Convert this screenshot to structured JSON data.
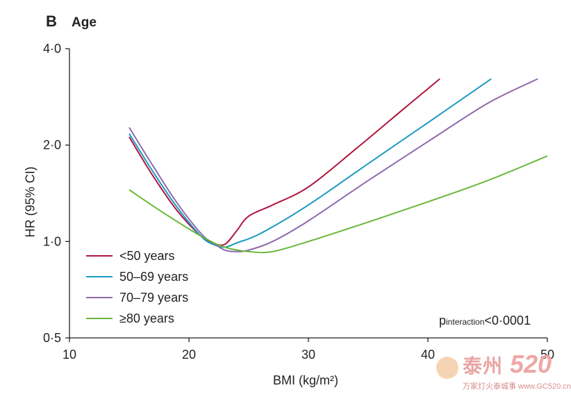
{
  "panel": {
    "letter": "B",
    "title": "Age"
  },
  "annotation": {
    "prefix": "p",
    "sub": "interaction",
    "suffix": "<0·0001"
  },
  "chart_data": {
    "type": "line",
    "title": "Age",
    "xlabel": "BMI (kg/m²)",
    "ylabel": "HR (95% CI)",
    "x_ticks": [
      10,
      20,
      30,
      40,
      50
    ],
    "x_tick_labels": [
      "10",
      "20",
      "30",
      "40",
      "50"
    ],
    "y_ticks": [
      0.5,
      1.0,
      2.0,
      4.0
    ],
    "y_tick_labels": [
      "0·5",
      "1·0",
      "2·0",
      "4·0"
    ],
    "xlim": [
      10,
      50
    ],
    "ylim": [
      0.5,
      4.0
    ],
    "y_scale": "log",
    "legend_position": "bottom-left",
    "series": [
      {
        "name": "<50 years",
        "color": "#b0143c",
        "x": [
          15,
          17,
          19,
          21,
          22,
          23,
          24,
          25,
          27,
          30,
          34,
          38,
          41
        ],
        "y": [
          2.12,
          1.6,
          1.25,
          1.04,
          0.99,
          0.98,
          1.08,
          1.2,
          1.3,
          1.48,
          1.95,
          2.6,
          3.22
        ]
      },
      {
        "name": "50–69 years",
        "color": "#1a9ac0",
        "x": [
          15,
          17,
          19,
          21,
          22,
          23,
          24,
          26,
          30,
          35,
          40,
          45.3
        ],
        "y": [
          2.17,
          1.65,
          1.28,
          1.04,
          0.98,
          0.96,
          0.99,
          1.06,
          1.3,
          1.75,
          2.35,
          3.22
        ]
      },
      {
        "name": "70–79 years",
        "color": "#8e6aad",
        "x": [
          15,
          17,
          19,
          21,
          22,
          23,
          24,
          25,
          27,
          30,
          35,
          40,
          45,
          49.2
        ],
        "y": [
          2.27,
          1.72,
          1.32,
          1.06,
          0.99,
          0.94,
          0.93,
          0.94,
          1.0,
          1.16,
          1.55,
          2.05,
          2.7,
          3.22
        ]
      },
      {
        "name": "≥80 years",
        "color": "#6ab83c",
        "x": [
          15,
          18,
          21,
          23,
          25,
          27,
          30,
          35,
          40,
          45,
          50
        ],
        "y": [
          1.45,
          1.22,
          1.04,
          0.96,
          0.93,
          0.93,
          1.0,
          1.15,
          1.33,
          1.55,
          1.85
        ]
      }
    ]
  },
  "watermark": {
    "text": "泰州",
    "num": "520",
    "sub": "万家灯火泰城事 www.GC520.cn"
  }
}
